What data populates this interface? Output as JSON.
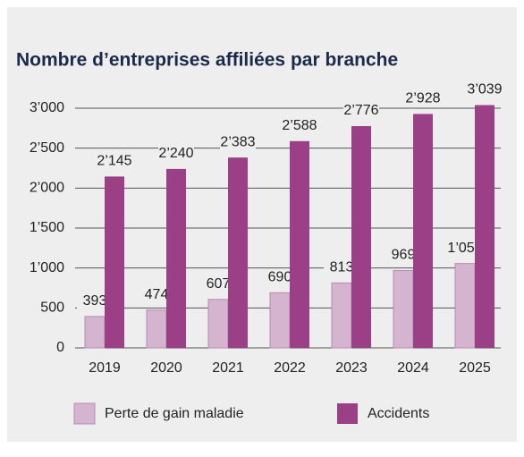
{
  "chart_data": {
    "type": "bar",
    "title": "Nombre d’entreprises affiliées par branche",
    "categories": [
      "2019",
      "2020",
      "2021",
      "2022",
      "2023",
      "2024",
      "2025"
    ],
    "series": [
      {
        "name": "Perte de gain maladie",
        "color": "#d5b4d0",
        "values": [
          393,
          474,
          607,
          690,
          813,
          969,
          1056
        ],
        "value_labels": [
          "393",
          "474",
          "607",
          "690",
          "813",
          "969",
          "1’056"
        ]
      },
      {
        "name": "Accidents",
        "color": "#9b3f86",
        "values": [
          2145,
          2240,
          2383,
          2588,
          2776,
          2928,
          3039
        ],
        "value_labels": [
          "2’145",
          "2’240",
          "2’383",
          "2’588",
          "2’776",
          "2’928",
          "3’039"
        ]
      }
    ],
    "ylim": [
      0,
      3000
    ],
    "yticks": [
      0,
      500,
      {
        "value": 1000,
        "label": "1’000"
      },
      {
        "value": 1500,
        "label": "1’500"
      },
      {
        "value": 2000,
        "label": "2’000"
      },
      {
        "value": 2500,
        "label": "2’500"
      },
      {
        "value": 3000,
        "label": "3’000"
      }
    ],
    "grid": true
  }
}
